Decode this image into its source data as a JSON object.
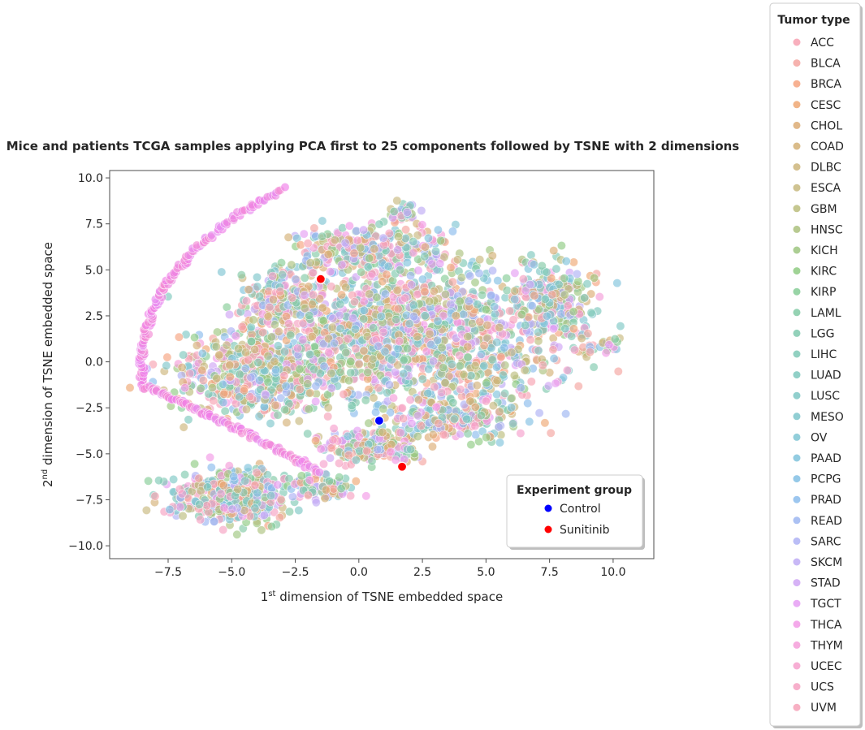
{
  "chart_data": {
    "type": "scatter",
    "title": "Mice and patients TCGA samples applying PCA first to 25 components followed by TSNE with 2 dimensions",
    "xlabel": {
      "pre": "1",
      "sup": "st",
      "post": " dimension of TSNE embedded space"
    },
    "ylabel": {
      "pre": "2",
      "sup": "nd",
      "post": " dimension of TSNE embedded space"
    },
    "xlim": [
      -9.8,
      11.6
    ],
    "ylim": [
      -10.7,
      10.4
    ],
    "xticks": [
      -7.5,
      -5.0,
      -2.5,
      0.0,
      2.5,
      5.0,
      7.5,
      10.0
    ],
    "yticks": [
      -10.0,
      -7.5,
      -5.0,
      -2.5,
      0.0,
      2.5,
      5.0,
      7.5,
      10.0
    ],
    "xtick_labels": [
      "−7.5",
      "−5.0",
      "−2.5",
      "0.0",
      "2.5",
      "5.0",
      "7.5",
      "10.0"
    ],
    "ytick_labels": [
      "−10.0",
      "−7.5",
      "−5.0",
      "−2.5",
      "0.0",
      "2.5",
      "5.0",
      "7.5",
      "10.0"
    ],
    "grid": false,
    "tumor_legend": {
      "title": "Tumor type",
      "placement": "outside-right",
      "entries": [
        {
          "name": "ACC",
          "color": "#f7a1b1"
        },
        {
          "name": "BLCA",
          "color": "#f5a4a0"
        },
        {
          "name": "BRCA",
          "color": "#f6a37f"
        },
        {
          "name": "CESC",
          "color": "#eea773"
        },
        {
          "name": "CHOL",
          "color": "#dcac74"
        },
        {
          "name": "COAD",
          "color": "#d4b076"
        },
        {
          "name": "DLBC",
          "color": "#cdb57b"
        },
        {
          "name": "ESCA",
          "color": "#c7b97e"
        },
        {
          "name": "GBM",
          "color": "#bbbd7d"
        },
        {
          "name": "HNSC",
          "color": "#acc17e"
        },
        {
          "name": "KICH",
          "color": "#9ec680"
        },
        {
          "name": "KIRC",
          "color": "#8fcb83"
        },
        {
          "name": "KIRP",
          "color": "#86cc96"
        },
        {
          "name": "LAML",
          "color": "#82caa6"
        },
        {
          "name": "LGG",
          "color": "#80c9ae"
        },
        {
          "name": "LIHC",
          "color": "#7fc9b6"
        },
        {
          "name": "LUAD",
          "color": "#7ec8bd"
        },
        {
          "name": "LUSC",
          "color": "#7ec7c4"
        },
        {
          "name": "MESO",
          "color": "#7ec6cb"
        },
        {
          "name": "OV",
          "color": "#7fc5d3"
        },
        {
          "name": "PAAD",
          "color": "#80c3dc"
        },
        {
          "name": "PCPG",
          "color": "#83c0e4"
        },
        {
          "name": "PRAD",
          "color": "#8bbcec"
        },
        {
          "name": "READ",
          "color": "#9cb6f1"
        },
        {
          "name": "SARC",
          "color": "#aeb1f4"
        },
        {
          "name": "SKCM",
          "color": "#beabf5"
        },
        {
          "name": "STAD",
          "color": "#cfa5f5"
        },
        {
          "name": "TGCT",
          "color": "#e59ef3"
        },
        {
          "name": "THCA",
          "color": "#f29ae6"
        },
        {
          "name": "THYM",
          "color": "#f59dd9"
        },
        {
          "name": "UCEC",
          "color": "#f6a0cd"
        },
        {
          "name": "UCS",
          "color": "#f6a1c2"
        },
        {
          "name": "UVM",
          "color": "#f6a2b9"
        }
      ]
    },
    "group_legend": {
      "title": "Experiment group",
      "placement": "lower-right",
      "entries": [
        {
          "name": "Control",
          "color": "#0000ff"
        },
        {
          "name": "Sunitinib",
          "color": "#ff0000"
        }
      ]
    },
    "highlight_points": [
      {
        "group": "Control",
        "x": 0.8,
        "y": -3.2
      },
      {
        "group": "Sunitinib",
        "x": -1.5,
        "y": 4.5
      },
      {
        "group": "Sunitinib",
        "x": 1.7,
        "y": -5.7
      }
    ],
    "tumor_point_clouds": [
      {
        "kind": "blob",
        "cx": 2.0,
        "cy": 1.5,
        "rx": 6.0,
        "ry": 4.0,
        "n": 1500
      },
      {
        "kind": "blob",
        "cx": -4.0,
        "cy": -0.5,
        "rx": 3.3,
        "ry": 2.4,
        "n": 500
      },
      {
        "kind": "blob",
        "cx": -3.0,
        "cy": 3.5,
        "rx": 1.6,
        "ry": 1.4,
        "n": 140
      },
      {
        "kind": "blob",
        "cx": -5.0,
        "cy": -7.3,
        "rx": 2.5,
        "ry": 1.6,
        "n": 400
      },
      {
        "kind": "blob",
        "cx": -1.5,
        "cy": -6.8,
        "rx": 1.2,
        "ry": 0.8,
        "n": 90
      },
      {
        "kind": "blob",
        "cx": 0.5,
        "cy": -4.5,
        "rx": 2.0,
        "ry": 1.0,
        "n": 220
      },
      {
        "kind": "blob",
        "cx": 0.5,
        "cy": 6.2,
        "rx": 3.0,
        "ry": 1.3,
        "n": 250
      },
      {
        "kind": "blob",
        "cx": 1.7,
        "cy": 8.1,
        "rx": 0.8,
        "ry": 0.6,
        "n": 40
      },
      {
        "kind": "blob",
        "cx": 7.5,
        "cy": 3.5,
        "rx": 1.5,
        "ry": 2.3,
        "n": 200
      },
      {
        "kind": "blob",
        "cx": 9.5,
        "cy": 0.8,
        "rx": 0.8,
        "ry": 0.7,
        "n": 25
      },
      {
        "kind": "blob",
        "cx": 4.0,
        "cy": -3.0,
        "rx": 2.5,
        "ry": 1.2,
        "n": 180
      },
      {
        "kind": "arc",
        "from": [
          -8.5,
          -1.3
        ],
        "to": [
          -3.0,
          9.4
        ],
        "ctrl": [
          -9.0,
          5.0
        ],
        "n": 140
      },
      {
        "kind": "arc",
        "from": [
          -8.5,
          -1.3
        ],
        "to": [
          -1.5,
          -6.0
        ],
        "ctrl": [
          -5.5,
          -3.0
        ],
        "n": 110
      }
    ]
  }
}
